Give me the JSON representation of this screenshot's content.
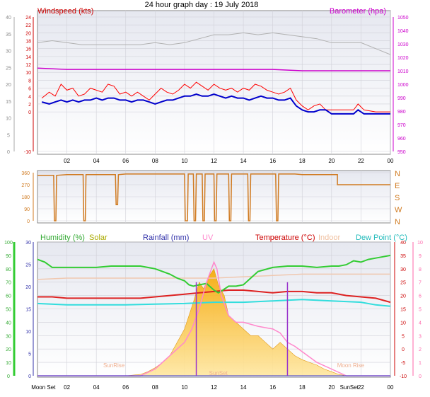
{
  "page_title": "24 hour graph day : 19 July 2018",
  "chart_data": [
    {
      "id": "wind",
      "type": "line",
      "labels": {
        "left": "Windspeed (kts)",
        "right": "Barometer (hpa)"
      },
      "xticks": [
        "02",
        "04",
        "06",
        "08",
        "10",
        "12",
        "14",
        "16",
        "18",
        "20",
        "22",
        "00"
      ],
      "x_hours": [
        0,
        24
      ],
      "y_left": {
        "ticks": [
          -10,
          0,
          2,
          4,
          6,
          8,
          10,
          12,
          14,
          16,
          18,
          20,
          22,
          24
        ],
        "range": [
          -10,
          24
        ]
      },
      "y_far_left": {
        "ticks": [
          0,
          5,
          10,
          15,
          20,
          25,
          30,
          35,
          40
        ]
      },
      "y_right": {
        "ticks": [
          950,
          960,
          970,
          980,
          990,
          1000,
          1010,
          1020,
          1030,
          1040,
          1050
        ],
        "range": [
          950,
          1050
        ]
      },
      "colors": {
        "gust": "#ff0000",
        "wind": "#0000cc",
        "barometer": "#cc00cc",
        "grey": "#b0b0b0"
      },
      "series": [
        {
          "key": "gust",
          "x": [
            0.3,
            0.8,
            1.2,
            1.6,
            2.0,
            2.4,
            2.8,
            3.2,
            3.6,
            4.0,
            4.4,
            4.8,
            5.2,
            5.6,
            6.0,
            6.4,
            6.8,
            7.2,
            7.6,
            8.0,
            8.4,
            8.8,
            9.2,
            9.6,
            10.0,
            10.4,
            10.8,
            11.2,
            11.6,
            12.0,
            12.4,
            12.8,
            13.2,
            13.6,
            14.0,
            14.4,
            14.8,
            15.2,
            15.6,
            16.0,
            16.4,
            16.8,
            17.2,
            17.6,
            18.0,
            18.4,
            18.8,
            19.2,
            19.6,
            20.0,
            20.5,
            21.0,
            21.5,
            21.8,
            22.2,
            23,
            24
          ],
          "y": [
            3.5,
            5.0,
            4.0,
            7.0,
            5.5,
            6.0,
            4.0,
            4.5,
            6.0,
            5.5,
            5.0,
            7.0,
            6.5,
            4.5,
            5.0,
            4.0,
            5.0,
            4.0,
            3.0,
            4.5,
            6.0,
            5.0,
            4.5,
            5.5,
            7.0,
            6.0,
            7.5,
            6.5,
            5.5,
            7.0,
            6.0,
            5.5,
            6.0,
            5.0,
            6.0,
            5.5,
            7.0,
            6.5,
            5.5,
            5.0,
            4.5,
            5.0,
            6.0,
            3.0,
            1.5,
            0.5,
            1.5,
            2.0,
            0.5,
            0.5,
            0.5,
            0.5,
            0.5,
            2.0,
            0.5,
            0.0,
            0.0
          ]
        },
        {
          "key": "wind",
          "x": [
            0.3,
            0.8,
            1.2,
            1.6,
            2.0,
            2.4,
            2.8,
            3.2,
            3.6,
            4.0,
            4.4,
            4.8,
            5.2,
            5.6,
            6.0,
            6.4,
            6.8,
            7.2,
            7.6,
            8.0,
            8.4,
            8.8,
            9.2,
            9.6,
            10.0,
            10.4,
            10.8,
            11.2,
            11.6,
            12.0,
            12.4,
            12.8,
            13.2,
            13.6,
            14.0,
            14.4,
            14.8,
            15.2,
            15.6,
            16.0,
            16.4,
            16.8,
            17.2,
            17.6,
            18.0,
            18.4,
            18.8,
            19.2,
            19.6,
            20.0,
            20.5,
            21.0,
            21.5,
            21.8,
            22.2,
            23,
            24
          ],
          "y": [
            2.5,
            2.0,
            2.5,
            3.0,
            2.5,
            3.0,
            2.5,
            3.0,
            3.0,
            3.5,
            3.0,
            3.5,
            3.5,
            3.0,
            3.0,
            2.5,
            3.0,
            3.0,
            2.5,
            2.0,
            2.5,
            3.0,
            3.0,
            3.5,
            4.0,
            4.0,
            4.5,
            4.0,
            4.0,
            4.5,
            4.0,
            3.5,
            4.0,
            3.5,
            3.5,
            3.0,
            3.5,
            4.0,
            3.5,
            3.5,
            3.0,
            3.0,
            3.5,
            1.5,
            0.5,
            0.0,
            0.0,
            0.5,
            0.5,
            -0.5,
            -0.5,
            -0.5,
            -0.5,
            0.5,
            -0.5,
            -0.5,
            -0.5
          ]
        },
        {
          "key": "barometer",
          "x": [
            0,
            2,
            4,
            6,
            8,
            10,
            12,
            14,
            16,
            18,
            20,
            22,
            24
          ],
          "y": [
            1012,
            1011,
            1011,
            1011,
            1011,
            1011,
            1011,
            1011,
            1011,
            1010,
            1010,
            1010,
            1010
          ]
        },
        {
          "key": "grey",
          "x": [
            0,
            1,
            2,
            3,
            4,
            5,
            6,
            7,
            8,
            9,
            10,
            11,
            12,
            13,
            14,
            15,
            16,
            17,
            18,
            19,
            20,
            21,
            22,
            23,
            24
          ],
          "y": [
            17.5,
            18.0,
            17.5,
            17.0,
            17.0,
            17.0,
            17.0,
            17.0,
            17.5,
            17.0,
            17.5,
            18.5,
            19.5,
            19.5,
            20.0,
            19.5,
            20.0,
            19.5,
            19.0,
            18.5,
            17.5,
            17.5,
            17.5,
            16.0,
            14.5
          ]
        }
      ]
    },
    {
      "id": "direction",
      "type": "line",
      "xticks": [],
      "y_left": {
        "ticks": [
          0,
          90,
          180,
          270,
          360
        ],
        "range": [
          0,
          360
        ]
      },
      "y_right": {
        "ticks": [
          "N",
          "W",
          "S",
          "E",
          "N"
        ]
      },
      "colors": {
        "line": "#d07a20"
      },
      "series": [
        {
          "key": "direction",
          "x": [
            0,
            1.1,
            1.15,
            1.25,
            1.3,
            2,
            3.1,
            3.15,
            3.25,
            3.3,
            4,
            5.3,
            5.35,
            5.45,
            5.5,
            6,
            10.0,
            10.05,
            10.1,
            10.2,
            10.25,
            10.6,
            10.65,
            10.75,
            10.8,
            11.2,
            11.25,
            11.35,
            11.4,
            12.0,
            12.05,
            12.15,
            12.2,
            13.0,
            13.05,
            13.15,
            13.2,
            14.3,
            14.35,
            14.45,
            14.5,
            16.2,
            16.25,
            16.35,
            16.4,
            17.5,
            18,
            19,
            20,
            20.4,
            20.4,
            22,
            24
          ],
          "y": [
            340,
            340,
            0,
            0,
            340,
            345,
            345,
            0,
            0,
            345,
            345,
            345,
            120,
            120,
            345,
            350,
            350,
            0,
            0,
            0,
            350,
            350,
            0,
            0,
            350,
            350,
            0,
            0,
            350,
            350,
            0,
            0,
            350,
            350,
            0,
            0,
            350,
            350,
            0,
            0,
            350,
            350,
            0,
            0,
            350,
            350,
            345,
            345,
            345,
            345,
            270,
            270,
            270
          ]
        }
      ]
    },
    {
      "id": "temperature",
      "type": "line",
      "labels": {
        "humidity": "Humidity (%)",
        "solar": "Solar",
        "rainfall": "Rainfall (mm)",
        "uv": "UV",
        "temperature": "Temperature (°C)",
        "indoor": "Indoor",
        "dewpoint": "Dew Point (°C)"
      },
      "xticks": [
        "Moon Set",
        "02",
        "04",
        "06",
        "08",
        "10",
        "12",
        "14",
        "16",
        "18",
        "20",
        "SunSet",
        "22",
        "00"
      ],
      "y_humidity": {
        "ticks": [
          0,
          10,
          20,
          30,
          40,
          50,
          60,
          70,
          80,
          90,
          100
        ],
        "range": [
          0,
          100
        ]
      },
      "y_rain": {
        "ticks": [
          0,
          5,
          10,
          15,
          20,
          25,
          30
        ],
        "range": [
          0,
          30
        ]
      },
      "y_temp": {
        "ticks": [
          -10,
          -5,
          0,
          5,
          10,
          15,
          20,
          25,
          30,
          35,
          40
        ],
        "range": [
          -10,
          40
        ]
      },
      "y_uv": {
        "ticks": [
          0,
          1,
          2,
          3,
          4,
          5,
          6,
          7,
          8,
          9,
          10
        ],
        "range": [
          0,
          10
        ]
      },
      "annotations": [
        "SunRise",
        "SunSet",
        "Moon Rise"
      ],
      "colors": {
        "humidity": "#33cc33",
        "temperature": "#dd2222",
        "dewpoint": "#33dddd",
        "indoor": "#f0c8b0",
        "solar": "#f0a020",
        "uv": "#ff88cc",
        "rain": "#3333cc"
      },
      "series": [
        {
          "key": "humidity",
          "x": [
            0,
            0.5,
            1,
            2,
            3,
            4,
            5,
            6,
            7,
            7.5,
            8,
            9,
            9.5,
            10,
            10.3,
            10.6,
            11,
            11.5,
            12,
            12.3,
            12.6,
            13,
            13.5,
            14,
            14.5,
            15,
            16,
            17,
            18,
            19,
            20,
            20.5,
            21,
            21.5,
            22,
            22.5,
            23,
            23.5,
            24
          ],
          "y": [
            87,
            85,
            81,
            81,
            81,
            81,
            82,
            82,
            82,
            81,
            80,
            76,
            73,
            71,
            68,
            67,
            68,
            69,
            64,
            62,
            64,
            67,
            67,
            68,
            73,
            78,
            81,
            82,
            82,
            81,
            82,
            82,
            83,
            86,
            85,
            87,
            88,
            89,
            90
          ]
        },
        {
          "key": "temperature",
          "x": [
            0,
            1,
            2,
            3,
            4,
            5,
            6,
            7,
            8,
            9,
            10,
            11,
            12,
            13,
            14,
            15,
            16,
            17,
            18,
            19,
            20,
            21,
            22,
            23,
            24
          ],
          "y": [
            19.5,
            19.5,
            19,
            19,
            19,
            19,
            19,
            19,
            19.5,
            20,
            20.5,
            21,
            21.5,
            22,
            22,
            21.5,
            21,
            21.5,
            21.5,
            21,
            21,
            20,
            19.5,
            19,
            17.5
          ]
        },
        {
          "key": "dewpoint",
          "x": [
            0,
            2,
            4,
            6,
            8,
            10,
            12,
            14,
            16,
            18,
            20,
            22,
            23,
            24
          ],
          "y": [
            17,
            16.5,
            16.5,
            16.5,
            16.8,
            17,
            17.5,
            17.5,
            18,
            18.5,
            18,
            17.5,
            16.5,
            16
          ]
        },
        {
          "key": "indoor",
          "x": [
            0,
            2,
            4,
            6,
            8,
            10,
            12,
            14,
            16,
            18,
            20,
            22,
            24
          ],
          "y": [
            26,
            26.5,
            26.5,
            26.5,
            26.5,
            26.5,
            26.5,
            27,
            27.5,
            28,
            28,
            28,
            28
          ]
        },
        {
          "key": "solar",
          "x": [
            0,
            6,
            7,
            7.5,
            8,
            8.5,
            9,
            9.5,
            10,
            10.3,
            10.6,
            11,
            11.3,
            11.7,
            12,
            12.3,
            12.7,
            13,
            13.5,
            14,
            14.5,
            15,
            15.5,
            16,
            16.5,
            17,
            17.5,
            18,
            18.5,
            19,
            19.5,
            20,
            20.5,
            21,
            24
          ],
          "y": [
            0,
            0,
            1,
            3,
            6,
            10,
            15,
            25,
            35,
            45,
            55,
            70,
            65,
            75,
            80,
            68,
            60,
            45,
            40,
            35,
            30,
            30,
            25,
            20,
            25,
            20,
            15,
            12,
            10,
            8,
            5,
            3,
            1,
            0,
            0
          ]
        },
        {
          "key": "uv",
          "x": [
            0,
            7,
            8,
            9,
            9.5,
            10,
            10.5,
            11,
            11.5,
            12,
            12.2,
            12.5,
            13,
            13.5,
            14,
            15,
            16,
            16.5,
            17,
            17.5,
            18,
            19,
            20,
            21,
            24
          ],
          "y": [
            0,
            0,
            0.5,
            1.5,
            2,
            2.5,
            3.5,
            5,
            7,
            8.5,
            8,
            6,
            4.5,
            4,
            4,
            3.7,
            3.5,
            3.2,
            2.5,
            2.2,
            1.8,
            1,
            0.5,
            0,
            0
          ]
        },
        {
          "key": "rain",
          "x": [
            0,
            24
          ],
          "y": [
            0,
            0
          ]
        }
      ]
    }
  ]
}
